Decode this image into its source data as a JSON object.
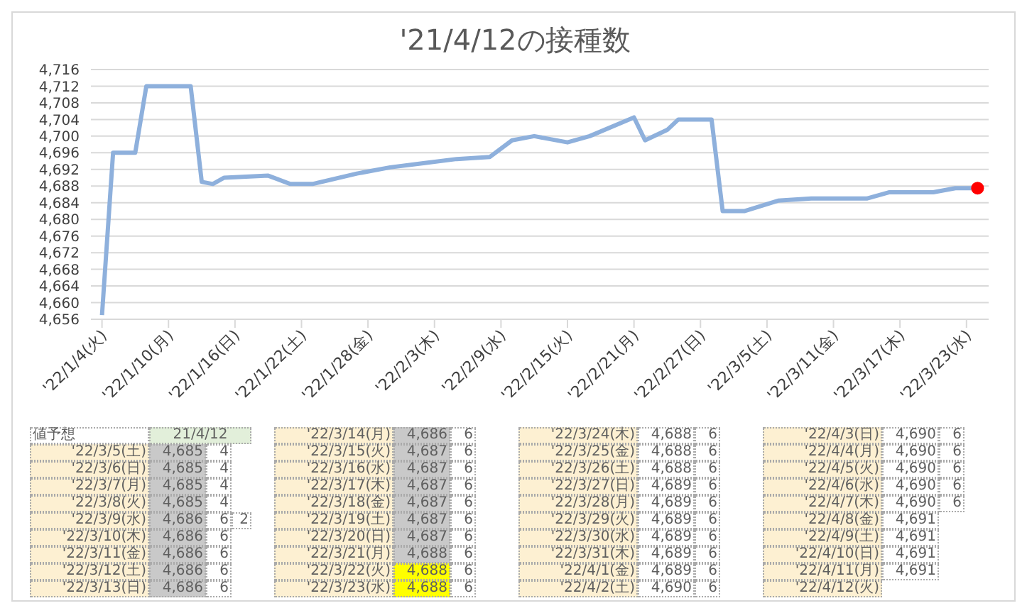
{
  "chart_data": {
    "type": "line",
    "title": "'21/4/12の接種数",
    "xlim": [
      "2022-01-03",
      "2022-03-25"
    ],
    "xticks": [
      {
        "value": "2022-01-04",
        "label": "'22/1/4(火)"
      },
      {
        "value": "2022-01-10",
        "label": "'22/1/10(月)"
      },
      {
        "value": "2022-01-16",
        "label": "'22/1/16(日)"
      },
      {
        "value": "2022-01-22",
        "label": "'22/1/22(土)"
      },
      {
        "value": "2022-01-28",
        "label": "'22/1/28(金)"
      },
      {
        "value": "2022-02-03",
        "label": "'22/2/3(木)"
      },
      {
        "value": "2022-02-09",
        "label": "'22/2/9(水)"
      },
      {
        "value": "2022-02-15",
        "label": "'22/2/15(火)"
      },
      {
        "value": "2022-02-21",
        "label": "'22/2/21(月)"
      },
      {
        "value": "2022-02-27",
        "label": "'22/2/27(日)"
      },
      {
        "value": "2022-03-05",
        "label": "'22/3/5(土)"
      },
      {
        "value": "2022-03-11",
        "label": "'22/3/11(金)"
      },
      {
        "value": "2022-03-17",
        "label": "'22/3/17(木)"
      },
      {
        "value": "2022-03-23",
        "label": "'22/3/23(水)"
      }
    ],
    "ylim": [
      4656,
      4716
    ],
    "yticks": [
      {
        "value": 4656,
        "label": "4,656"
      },
      {
        "value": 4660,
        "label": "4,660"
      },
      {
        "value": 4664,
        "label": "4,664"
      },
      {
        "value": 4668,
        "label": "4,668"
      },
      {
        "value": 4672,
        "label": "4,672"
      },
      {
        "value": 4676,
        "label": "4,676"
      },
      {
        "value": 4680,
        "label": "4,680"
      },
      {
        "value": 4684,
        "label": "4,684"
      },
      {
        "value": 4688,
        "label": "4,688"
      },
      {
        "value": 4692,
        "label": "4,692"
      },
      {
        "value": 4696,
        "label": "4,696"
      },
      {
        "value": 4700,
        "label": "4,700"
      },
      {
        "value": 4704,
        "label": "4,704"
      },
      {
        "value": 4708,
        "label": "4,708"
      },
      {
        "value": 4712,
        "label": "4,712"
      },
      {
        "value": 4716,
        "label": "4,716"
      }
    ],
    "grid": "y",
    "series": [
      {
        "color": "#8eb0dc",
        "x": [
          "2022-01-04",
          "2022-01-05",
          "2022-01-07",
          "2022-01-08",
          "2022-01-12",
          "2022-01-13",
          "2022-01-14",
          "2022-01-15",
          "2022-01-19",
          "2022-01-21",
          "2022-01-23",
          "2022-01-27",
          "2022-01-30",
          "2022-02-02",
          "2022-02-05",
          "2022-02-08",
          "2022-02-10",
          "2022-02-12",
          "2022-02-15",
          "2022-02-17",
          "2022-02-21",
          "2022-02-22",
          "2022-02-24",
          "2022-02-25",
          "2022-02-28",
          "2022-03-01",
          "2022-03-03",
          "2022-03-06",
          "2022-03-09",
          "2022-03-14",
          "2022-03-16",
          "2022-03-20",
          "2022-03-22",
          "2022-03-24"
        ],
        "values": [
          4657,
          4696,
          4696,
          4712,
          4712,
          4689,
          4688.5,
          4690,
          4690.5,
          4688.5,
          4688.5,
          4691,
          4692.5,
          4693.5,
          4694.5,
          4695,
          4699,
          4700,
          4698.5,
          4700,
          4704.5,
          4699,
          4701.5,
          4704,
          4704,
          4682,
          4682,
          4684.5,
          4685,
          4685,
          4686.5,
          4686.5,
          4687.5,
          4687.5
        ]
      },
      {
        "type": "scatter",
        "color": "#ff0000",
        "x": [
          "2022-03-24"
        ],
        "values": [
          4687.5
        ]
      }
    ],
    "annotations": [
      "値予想",
      "21/4/12",
      "'22/3/5(土)",
      "4,685",
      "4",
      "'22/3/6(日)",
      "4,685",
      "4",
      "'22/3/7(月)",
      "4,685",
      "4",
      "'22/3/8(火)",
      "4,685",
      "4",
      "'22/3/9(水)",
      "4,686",
      "6",
      "2",
      "'22/3/10(木)",
      "4,686",
      "6",
      "'22/3/11(金)",
      "4,686",
      "6",
      "'22/3/12(土)",
      "4,686",
      "6",
      "'22/3/13(日)",
      "4,686",
      "6",
      "'22/3/14(月)",
      "4,686",
      "6",
      "'22/3/15(火)",
      "4,687",
      "6",
      "'22/3/16(水)",
      "4,687",
      "6",
      "'22/3/17(木)",
      "4,687",
      "6",
      "'22/3/18(金)",
      "4,687",
      "6",
      "'22/3/19(土)",
      "4,687",
      "6",
      "'22/3/20(日)",
      "4,687",
      "6",
      "'22/3/21(月)",
      "4,688",
      "6",
      "'22/3/22(火)",
      "4,688",
      "6",
      "'22/3/23(水)",
      "4,688",
      "6",
      "'22/3/24(木)",
      "4,688",
      "6",
      "'22/3/25(金)",
      "4,688",
      "6",
      "'22/3/26(土)",
      "4,688",
      "6",
      "'22/3/27(日)",
      "4,689",
      "6",
      "'22/3/28(月)",
      "4,689",
      "6",
      "'22/3/29(火)",
      "4,689",
      "6",
      "'22/3/30(水)",
      "4,689",
      "6",
      "'22/3/31(木)",
      "4,689",
      "6",
      "'22/4/1(金)",
      "4,689",
      "6",
      "'22/4/2(土)",
      "4,690",
      "6",
      "'22/4/3(日)",
      "4,690",
      "6",
      "'22/4/4(月)",
      "4,690",
      "6",
      "'22/4/5(火)",
      "4,690",
      "6",
      "'22/4/6(水)",
      "4,690",
      "6",
      "'22/4/7(木)",
      "4,690",
      "6",
      "'22/4/8(金)",
      "4,691",
      "'22/4/9(土)",
      "4,691",
      "'22/4/10(日)",
      "4,691",
      "'22/4/11(月)",
      "4,691",
      "'22/4/12(火)"
    ]
  }
}
